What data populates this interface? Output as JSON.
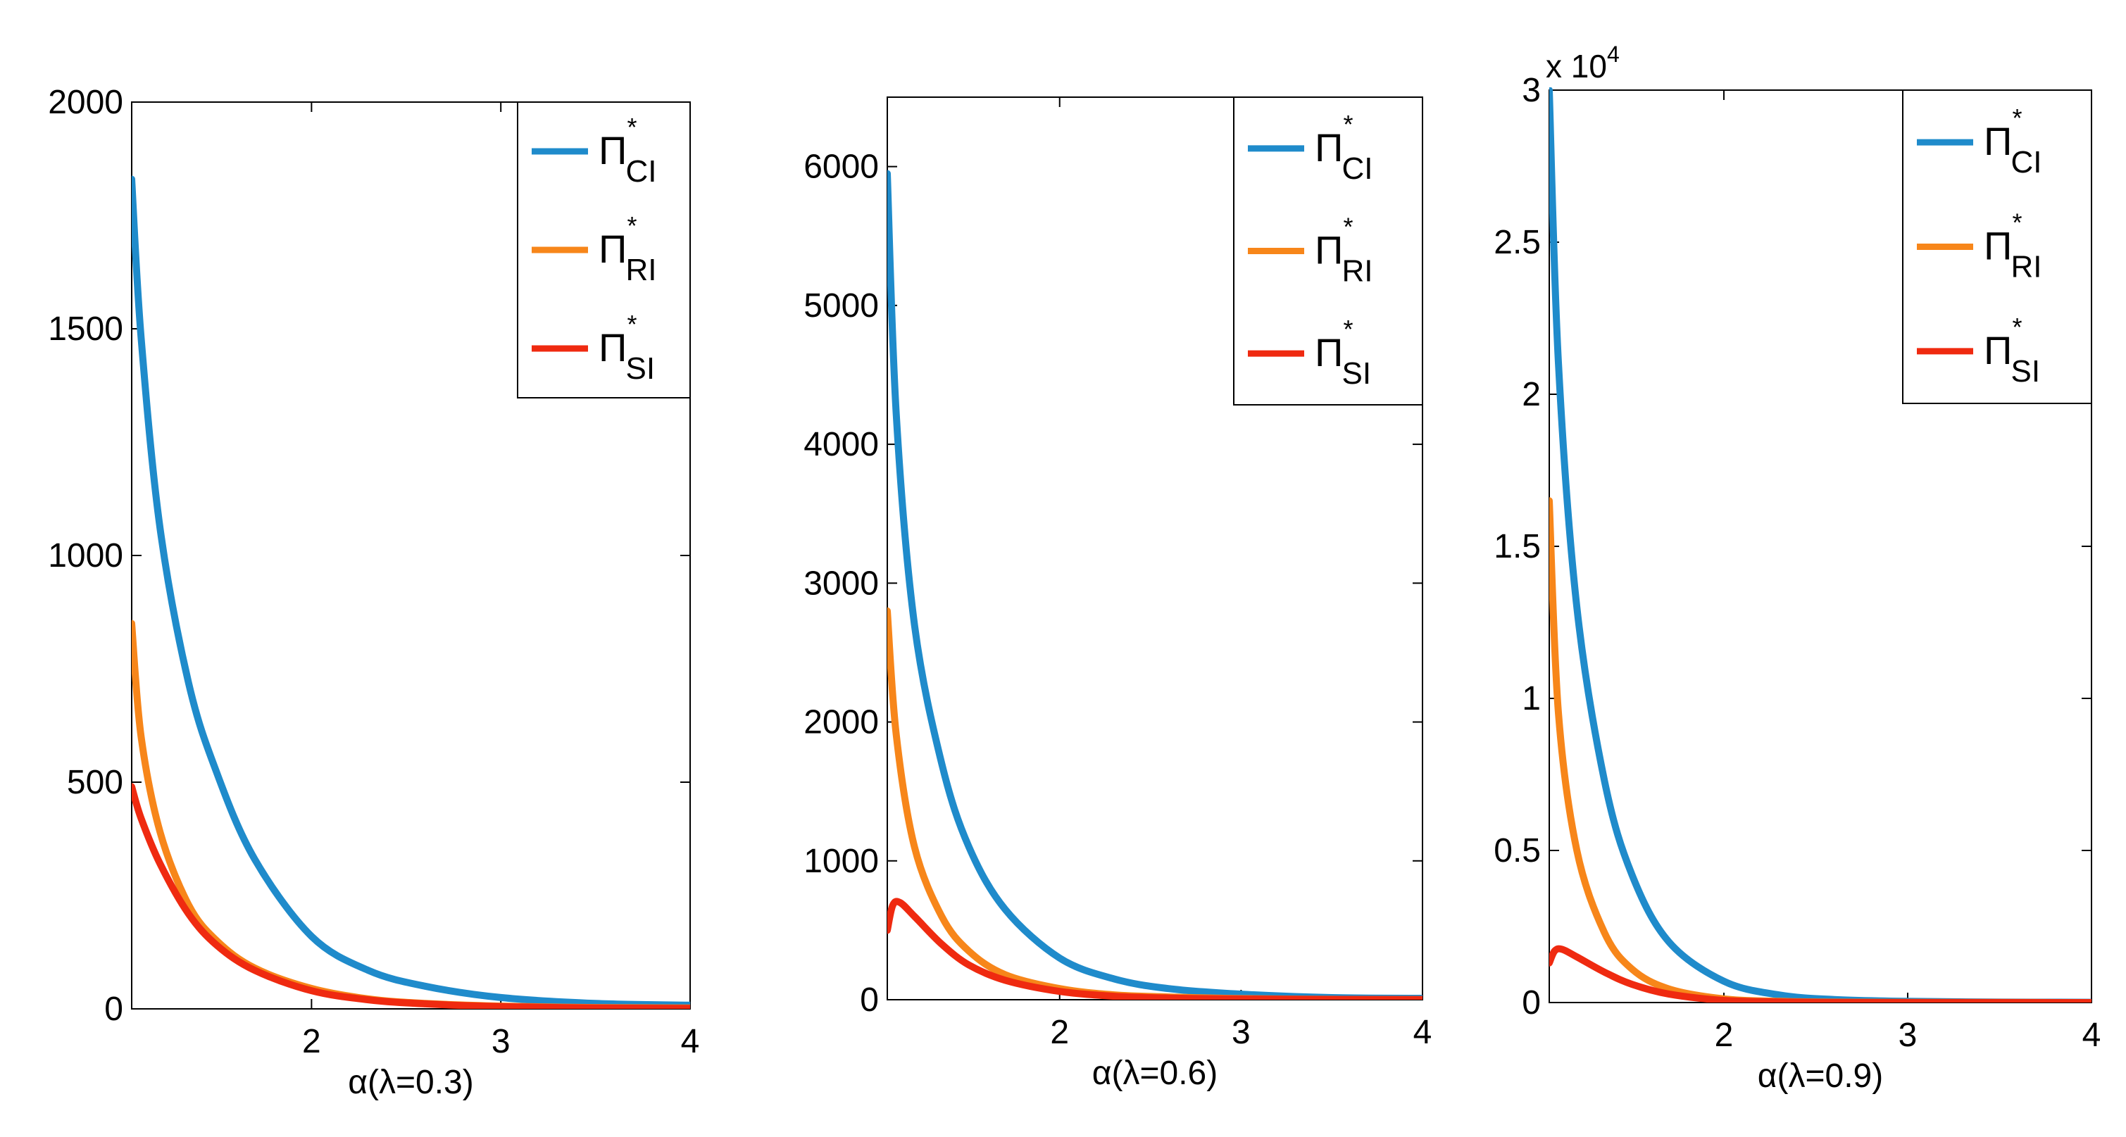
{
  "colors": {
    "CI": "#1f8bcb",
    "RI": "#f7861a",
    "SI": "#ef2a10"
  },
  "chart_data": [
    {
      "type": "line",
      "xlabel": "α(λ=0.3)",
      "xlim": [
        1.05,
        4
      ],
      "ylim": [
        0,
        2000
      ],
      "xticks": [
        2,
        3,
        4
      ],
      "yticks": [
        0,
        500,
        1000,
        1500,
        2000
      ],
      "ytick_labels": [
        "0",
        "500",
        "1000",
        "1500",
        "2000"
      ],
      "multiplier": "",
      "legend": "top-right",
      "legend_entries": [
        {
          "key": "CI",
          "symbol": "Π",
          "sup": "*",
          "sub": "CI"
        },
        {
          "key": "RI",
          "symbol": "Π",
          "sup": "*",
          "sub": "RI"
        },
        {
          "key": "SI",
          "symbol": "Π",
          "sup": "*",
          "sub": "SI"
        }
      ],
      "series": [
        {
          "key": "CI",
          "x": [
            1.05,
            1.1,
            1.2,
            1.35,
            1.5,
            1.7,
            2.0,
            2.3,
            2.6,
            3.0,
            3.5,
            4.0
          ],
          "values": [
            1830,
            1480,
            1060,
            720,
            520,
            330,
            160,
            85,
            50,
            25,
            12,
            8
          ]
        },
        {
          "key": "RI",
          "x": [
            1.05,
            1.1,
            1.2,
            1.35,
            1.5,
            1.7,
            2.0,
            2.3,
            2.6,
            3.0,
            3.5,
            4.0
          ],
          "values": [
            850,
            600,
            390,
            230,
            150,
            90,
            45,
            22,
            12,
            6,
            3,
            2
          ]
        },
        {
          "key": "SI",
          "x": [
            1.05,
            1.1,
            1.2,
            1.35,
            1.5,
            1.7,
            2.0,
            2.3,
            2.6,
            3.0,
            3.5,
            4.0
          ],
          "values": [
            490,
            420,
            320,
            210,
            140,
            85,
            40,
            20,
            11,
            5,
            2,
            1
          ]
        }
      ]
    },
    {
      "type": "line",
      "xlabel": "α(λ=0.6)",
      "xlim": [
        1.05,
        4
      ],
      "ylim": [
        0,
        6500
      ],
      "xticks": [
        2,
        3,
        4
      ],
      "yticks": [
        0,
        1000,
        2000,
        3000,
        4000,
        5000,
        6000
      ],
      "ytick_labels": [
        "0",
        "1000",
        "2000",
        "3000",
        "4000",
        "5000",
        "6000"
      ],
      "multiplier": "",
      "legend": "top-right",
      "legend_entries": [
        {
          "key": "CI",
          "symbol": "Π",
          "sup": "*",
          "sub": "CI"
        },
        {
          "key": "RI",
          "symbol": "Π",
          "sup": "*",
          "sub": "RI"
        },
        {
          "key": "SI",
          "symbol": "Π",
          "sup": "*",
          "sub": "SI"
        }
      ],
      "series": [
        {
          "key": "CI",
          "x": [
            1.05,
            1.1,
            1.2,
            1.35,
            1.5,
            1.7,
            2.0,
            2.3,
            2.6,
            3.0,
            3.5,
            4.0
          ],
          "values": [
            5950,
            4200,
            2700,
            1700,
            1100,
            650,
            300,
            150,
            80,
            40,
            15,
            10
          ]
        },
        {
          "key": "RI",
          "x": [
            1.05,
            1.1,
            1.2,
            1.35,
            1.5,
            1.7,
            2.0,
            2.3,
            2.6,
            3.0,
            3.5,
            4.0
          ],
          "values": [
            2800,
            1900,
            1100,
            600,
            350,
            180,
            80,
            35,
            20,
            8,
            3,
            1
          ]
        },
        {
          "key": "SI",
          "x": [
            1.05,
            1.08,
            1.12,
            1.2,
            1.35,
            1.5,
            1.7,
            2.0,
            2.3,
            2.6,
            3.0,
            4.0
          ],
          "values": [
            500,
            680,
            700,
            600,
            400,
            250,
            140,
            60,
            25,
            12,
            5,
            1
          ]
        }
      ]
    },
    {
      "type": "line",
      "xlabel": "α(λ=0.9)",
      "xlim": [
        1.05,
        4
      ],
      "ylim": [
        0,
        30000
      ],
      "xticks": [
        2,
        3,
        4
      ],
      "yticks": [
        0,
        5000,
        10000,
        15000,
        20000,
        25000,
        30000
      ],
      "ytick_labels": [
        "0",
        "0.5",
        "1",
        "1.5",
        "2",
        "2.5",
        "3"
      ],
      "multiplier": "x 10",
      "multiplier_exp": "4",
      "legend": "top-right",
      "legend_entries": [
        {
          "key": "CI",
          "symbol": "Π",
          "sup": "*",
          "sub": "CI"
        },
        {
          "key": "RI",
          "symbol": "Π",
          "sup": "*",
          "sub": "RI"
        },
        {
          "key": "SI",
          "symbol": "Π",
          "sup": "*",
          "sub": "SI"
        }
      ],
      "series": [
        {
          "key": "CI",
          "x": [
            1.05,
            1.1,
            1.2,
            1.35,
            1.5,
            1.7,
            2.0,
            2.3,
            2.6,
            3.0,
            3.5,
            4.0
          ],
          "values": [
            30000,
            21000,
            13000,
            7300,
            4200,
            2000,
            700,
            250,
            100,
            40,
            15,
            10
          ]
        },
        {
          "key": "RI",
          "x": [
            1.05,
            1.1,
            1.2,
            1.35,
            1.5,
            1.7,
            2.0,
            2.3,
            2.6,
            3.0,
            3.5,
            4.0
          ],
          "values": [
            16500,
            9500,
            5000,
            2300,
            1100,
            450,
            120,
            40,
            15,
            5,
            2,
            1
          ]
        },
        {
          "key": "SI",
          "x": [
            1.05,
            1.08,
            1.12,
            1.2,
            1.35,
            1.5,
            1.7,
            2.0,
            2.3,
            2.6,
            3.0,
            4.0
          ],
          "values": [
            1300,
            1700,
            1750,
            1500,
            1000,
            600,
            280,
            70,
            20,
            8,
            3,
            1
          ]
        }
      ]
    }
  ]
}
